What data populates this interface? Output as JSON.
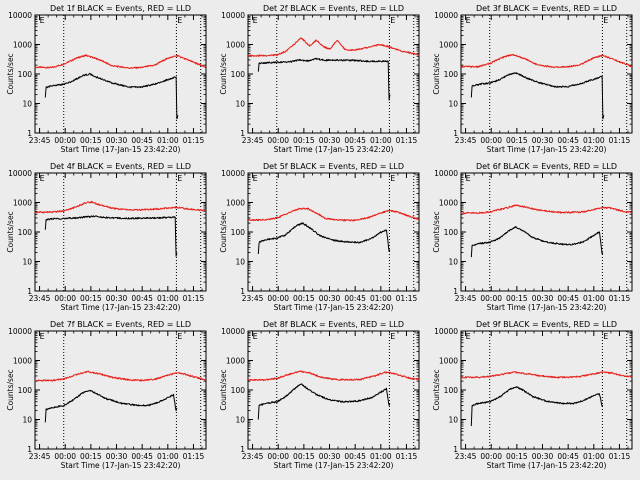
{
  "figure": {
    "background": "#ececec",
    "ink": "#000000",
    "red": "#e8201b"
  },
  "common": {
    "xlabel": "Start Time (17-Jan-15 23:42:20)",
    "ylabel": "Counts/sec",
    "x_tick_labels": [
      "23:45",
      "00:00",
      "00:15",
      "00:30",
      "00:45",
      "01:00",
      "01:15"
    ],
    "y_tick_labels": [
      "1",
      "10",
      "100",
      "1000",
      "10000"
    ],
    "y_scale": "log",
    "ylim": [
      1,
      10000
    ],
    "xlim_minutes_after_start": [
      0,
      100
    ],
    "marker_label": "E",
    "vertical_marker_minutes": [
      16.8,
      82.7,
      96.9
    ],
    "marker_label_minutes": [
      2.7,
      83.2
    ]
  },
  "chart_data": [
    {
      "type": "line",
      "title": "Det 1f BLACK = Events, RED = LLD",
      "x_unit": "minutes after 23:42:20",
      "series": [
        {
          "color": "#e8201b",
          "x": [
            0,
            10,
            17,
            25,
            30,
            38,
            45,
            55,
            62,
            70,
            77,
            83,
            87,
            92,
            97,
            100
          ],
          "values": [
            170,
            165,
            220,
            360,
            430,
            300,
            190,
            160,
            165,
            200,
            330,
            420,
            340,
            260,
            200,
            170
          ]
        },
        {
          "color": "#000000",
          "x": [
            6,
            6.5,
            10,
            17,
            22,
            28,
            32,
            38,
            45,
            55,
            62,
            70,
            76,
            81,
            82.5,
            83,
            83.5
          ],
          "values": [
            16,
            35,
            40,
            45,
            58,
            88,
            100,
            70,
            50,
            36,
            36,
            45,
            60,
            75,
            80,
            3,
            4
          ]
        }
      ]
    },
    {
      "type": "line",
      "title": "Det 2f BLACK = Events, RED = LLD",
      "x_unit": "minutes after 23:42:20",
      "series": [
        {
          "color": "#e8201b",
          "x": [
            0,
            10,
            17,
            22,
            27,
            31,
            36,
            40,
            44,
            48,
            52,
            57,
            62,
            70,
            77,
            82,
            90,
            100
          ],
          "values": [
            420,
            420,
            440,
            580,
            1000,
            1700,
            900,
            1400,
            850,
            700,
            1400,
            650,
            650,
            800,
            1000,
            850,
            600,
            450
          ]
        },
        {
          "color": "#000000",
          "x": [
            6,
            6.5,
            10,
            17,
            25,
            30,
            35,
            40,
            45,
            50,
            55,
            62,
            70,
            77,
            82,
            82.5,
            83
          ],
          "values": [
            120,
            230,
            240,
            250,
            260,
            300,
            280,
            330,
            290,
            300,
            290,
            290,
            270,
            270,
            270,
            13,
            20
          ]
        }
      ]
    },
    {
      "type": "line",
      "title": "Det 3f BLACK = Events, RED = LLD",
      "x_unit": "minutes after 23:42:20",
      "series": [
        {
          "color": "#e8201b",
          "x": [
            0,
            10,
            17,
            25,
            30,
            38,
            45,
            55,
            62,
            70,
            77,
            83,
            87,
            92,
            97,
            100
          ],
          "values": [
            180,
            175,
            230,
            380,
            460,
            320,
            200,
            170,
            175,
            210,
            340,
            430,
            350,
            270,
            210,
            180
          ]
        },
        {
          "color": "#000000",
          "x": [
            6,
            6.5,
            10,
            17,
            22,
            28,
            32,
            38,
            45,
            55,
            62,
            70,
            76,
            81,
            82.5,
            83,
            83.5
          ],
          "values": [
            16,
            40,
            44,
            50,
            62,
            95,
            110,
            75,
            52,
            37,
            37,
            47,
            62,
            78,
            82,
            3,
            4
          ]
        }
      ]
    },
    {
      "type": "line",
      "title": "Det 4f BLACK = Events, RED = LLD",
      "x_unit": "minutes after 23:42:20",
      "series": [
        {
          "color": "#e8201b",
          "x": [
            0,
            10,
            17,
            24,
            29,
            33,
            38,
            45,
            55,
            62,
            70,
            77,
            83,
            90,
            100
          ],
          "values": [
            470,
            470,
            520,
            700,
            950,
            1050,
            820,
            640,
            560,
            560,
            600,
            640,
            690,
            600,
            520
          ]
        },
        {
          "color": "#000000",
          "x": [
            6,
            6.5,
            10,
            17,
            25,
            30,
            35,
            40,
            45,
            55,
            62,
            70,
            77,
            82,
            82.5,
            83
          ],
          "values": [
            120,
            260,
            280,
            290,
            300,
            330,
            340,
            310,
            300,
            290,
            295,
            300,
            310,
            320,
            15,
            20
          ]
        }
      ]
    },
    {
      "type": "line",
      "title": "Det 5f BLACK = Events, RED = LLD",
      "x_unit": "minutes after 23:42:20",
      "series": [
        {
          "color": "#e8201b",
          "x": [
            0,
            10,
            17,
            25,
            30,
            35,
            40,
            45,
            55,
            62,
            70,
            77,
            83,
            88,
            93,
            100
          ],
          "values": [
            260,
            255,
            300,
            480,
            620,
            620,
            440,
            290,
            250,
            250,
            300,
            430,
            540,
            470,
            360,
            270
          ]
        },
        {
          "color": "#000000",
          "x": [
            6,
            6.5,
            10,
            17,
            22,
            28,
            32,
            36,
            42,
            50,
            60,
            66,
            72,
            78,
            81,
            82.5,
            83
          ],
          "values": [
            18,
            45,
            55,
            62,
            80,
            160,
            200,
            140,
            75,
            52,
            45,
            45,
            60,
            100,
            120,
            22,
            25
          ]
        }
      ]
    },
    {
      "type": "line",
      "title": "Det 6f BLACK = Events, RED = LLD",
      "x_unit": "minutes after 23:42:20",
      "series": [
        {
          "color": "#e8201b",
          "x": [
            0,
            10,
            17,
            25,
            32,
            38,
            45,
            55,
            62,
            70,
            77,
            83,
            88,
            93,
            100
          ],
          "values": [
            440,
            440,
            480,
            620,
            800,
            700,
            560,
            470,
            460,
            470,
            560,
            680,
            640,
            530,
            460
          ]
        },
        {
          "color": "#000000",
          "x": [
            6,
            6.5,
            10,
            17,
            22,
            28,
            32,
            36,
            42,
            50,
            60,
            66,
            72,
            78,
            81,
            82.5,
            83
          ],
          "values": [
            14,
            35,
            40,
            45,
            60,
            110,
            150,
            110,
            65,
            45,
            38,
            38,
            48,
            80,
            100,
            18,
            20
          ]
        }
      ]
    },
    {
      "type": "line",
      "title": "Det 7f BLACK = Events, RED = LLD",
      "x_unit": "minutes after 23:42:20",
      "series": [
        {
          "color": "#e8201b",
          "x": [
            0,
            10,
            17,
            25,
            31,
            38,
            45,
            55,
            62,
            70,
            77,
            83,
            88,
            93,
            100
          ],
          "values": [
            210,
            210,
            240,
            340,
            420,
            350,
            270,
            220,
            210,
            230,
            310,
            380,
            340,
            280,
            220
          ]
        },
        {
          "color": "#000000",
          "x": [
            6,
            6.5,
            10,
            17,
            22,
            28,
            32,
            36,
            42,
            50,
            60,
            66,
            72,
            78,
            81,
            82.5,
            83
          ],
          "values": [
            8,
            22,
            25,
            30,
            45,
            80,
            100,
            75,
            50,
            36,
            30,
            30,
            38,
            55,
            70,
            20,
            25
          ]
        }
      ]
    },
    {
      "type": "line",
      "title": "Det 8f BLACK = Events, RED = LLD",
      "x_unit": "minutes after 23:42:20",
      "series": [
        {
          "color": "#e8201b",
          "x": [
            0,
            10,
            17,
            24,
            30,
            36,
            42,
            50,
            58,
            66,
            74,
            80,
            84,
            90,
            95,
            100
          ],
          "values": [
            220,
            220,
            250,
            340,
            430,
            380,
            280,
            230,
            220,
            230,
            300,
            400,
            380,
            300,
            250,
            230
          ]
        },
        {
          "color": "#000000",
          "x": [
            6,
            6.5,
            10,
            17,
            22,
            28,
            31,
            34,
            40,
            48,
            56,
            64,
            72,
            77,
            81,
            82.5,
            83
          ],
          "values": [
            10,
            30,
            35,
            40,
            60,
            120,
            160,
            120,
            70,
            45,
            40,
            42,
            55,
            80,
            110,
            30,
            35
          ]
        }
      ]
    },
    {
      "type": "line",
      "title": "Det 9f BLACK = Events, RED = LLD",
      "x_unit": "minutes after 23:42:20",
      "series": [
        {
          "color": "#e8201b",
          "x": [
            0,
            10,
            17,
            25,
            31,
            38,
            45,
            55,
            62,
            70,
            77,
            83,
            88,
            93,
            100
          ],
          "values": [
            270,
            270,
            290,
            350,
            400,
            360,
            310,
            270,
            270,
            290,
            350,
            400,
            380,
            320,
            270
          ]
        },
        {
          "color": "#000000",
          "x": [
            6,
            6.5,
            10,
            17,
            22,
            28,
            32,
            36,
            42,
            50,
            60,
            66,
            72,
            78,
            81,
            82.5,
            83
          ],
          "values": [
            6,
            30,
            35,
            40,
            55,
            100,
            130,
            100,
            60,
            42,
            35,
            35,
            45,
            65,
            75,
            28,
            30
          ]
        }
      ]
    }
  ]
}
